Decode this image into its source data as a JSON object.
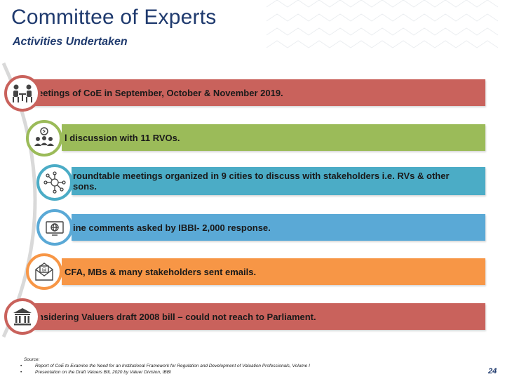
{
  "header": {
    "title": "Committee of Experts",
    "subtitle": "Activities Undertaken"
  },
  "colors": {
    "title": "#1f3a6e",
    "band1": "#c9625c",
    "band2": "#9bbb59",
    "band3": "#4bacc6",
    "band4": "#5aa9d6",
    "band5": "#f79646",
    "band6": "#c9625c"
  },
  "activities": [
    {
      "text": "eetings of CoE in September, October & November 2019.",
      "icon": "meeting-icon"
    },
    {
      "text": "l discussion with 11 RVOs.",
      "icon": "group-discussion-icon"
    },
    {
      "text": "roundtable meetings organized in 9 cities to discuss with stakeholders i.e. RVs & other",
      "text2": "sons.",
      "icon": "network-icon"
    },
    {
      "text": "ine comments asked by IBBI- 2,000 response.",
      "icon": "online-globe-icon"
    },
    {
      "text": "CFA, MBs & many stakeholders sent emails.",
      "icon": "email-icon"
    },
    {
      "text": "nsidering Valuers draft 2008 bill – could not reach to Parliament.",
      "icon": "parliament-icon"
    }
  ],
  "source": {
    "label": "Source:",
    "items": [
      "Report of CoE to Examine the Need for an Institutional Framework for Regulation and Development of Valuation Professionals, Volume I",
      "Presentation on the Draft Valuers Bill, 2020 by Valuer Division, IBBI"
    ]
  },
  "page_number": "24"
}
